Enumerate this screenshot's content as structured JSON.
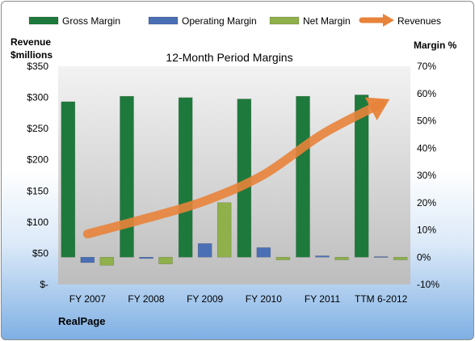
{
  "chart_data": {
    "type": "bar",
    "title": "12-Month Period Margins",
    "left_axis_label_line1": "Revenue",
    "left_axis_label_line2": "$millions",
    "right_axis_label": "Margin %",
    "company": "RealPage",
    "categories": [
      "FY 2007",
      "FY 2008",
      "FY 2009",
      "FY 2010",
      "FY 2011",
      "TTM 6-2012"
    ],
    "series": [
      {
        "name": "Gross Margin",
        "color": "#1e7a3c",
        "values": [
          57.0,
          59.0,
          58.5,
          58.0,
          59.0,
          59.5
        ]
      },
      {
        "name": "Operating Margin",
        "color": "#4a6fb5",
        "values": [
          -2.0,
          -0.5,
          5.0,
          3.5,
          0.5,
          0.2
        ]
      },
      {
        "name": "Net Margin",
        "color": "#8fb04a",
        "values": [
          -3.0,
          -2.5,
          20.0,
          -1.0,
          -1.0,
          -1.0
        ]
      }
    ],
    "line_series": {
      "name": "Revenues",
      "color": "#e8833a",
      "values": [
        81,
        106,
        134,
        176,
        241,
        290
      ],
      "axis": "left"
    },
    "left_axis": {
      "min": 0,
      "max": 350,
      "step": 50,
      "ticks": [
        "$-",
        "$50",
        "$100",
        "$150",
        "$200",
        "$250",
        "$300",
        "$350"
      ]
    },
    "right_axis": {
      "min": -10,
      "max": 70,
      "step": 10,
      "ticks": [
        "-10%",
        "0%",
        "10%",
        "20%",
        "30%",
        "40%",
        "50%",
        "60%",
        "70%"
      ]
    },
    "legend_position": "top",
    "grid": false
  }
}
